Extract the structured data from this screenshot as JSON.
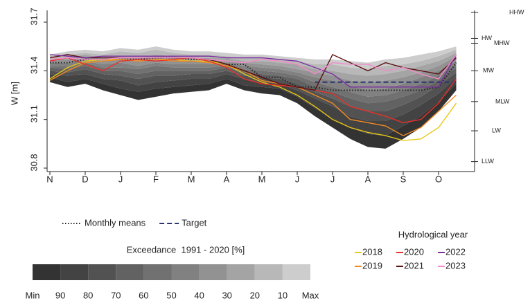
{
  "chart_data": {
    "type": "line",
    "y_label": "W [m]",
    "categories": [
      "N",
      null,
      "D",
      null,
      "J",
      null,
      "F",
      null,
      "M",
      null,
      "A",
      null,
      "M",
      null,
      "J",
      null,
      "J",
      null,
      "A",
      null,
      "S",
      null,
      "O",
      null
    ],
    "ylim": [
      30.8,
      31.7
    ],
    "yticks": [
      30.8,
      31.1,
      31.4,
      31.7
    ],
    "reference_levels": [
      {
        "label": "HHW",
        "value": 31.76
      },
      {
        "label": "HW",
        "value": 31.6
      },
      {
        "label": "MHW",
        "value": 31.57
      },
      {
        "label": "MW",
        "value": 31.4
      },
      {
        "label": "MLW",
        "value": 31.21
      },
      {
        "label": "LW",
        "value": 31.03
      },
      {
        "label": "LLW",
        "value": 30.84
      }
    ],
    "exceedance": {
      "title": "Exceedance  1991 - 2020 [%]",
      "colors": [
        "#333333",
        "#434343",
        "#525252",
        "#626262",
        "#717171",
        "#818181",
        "#929292",
        "#a4a4a4",
        "#b8b8b8",
        "#cdcdcd"
      ],
      "bounds": [
        {
          "name": "Min",
          "values": [
            31.33,
            31.3,
            31.32,
            31.28,
            31.25,
            31.22,
            31.24,
            31.26,
            31.27,
            31.28,
            31.32,
            31.28,
            31.26,
            31.25,
            31.2,
            31.12,
            31.05,
            30.98,
            30.93,
            30.92,
            30.98,
            31.05,
            31.15,
            31.28
          ]
        },
        {
          "name": "90",
          "values": [
            31.36,
            31.33,
            31.35,
            31.32,
            31.29,
            31.27,
            31.29,
            31.3,
            31.31,
            31.32,
            31.35,
            31.31,
            31.3,
            31.29,
            31.24,
            31.17,
            31.11,
            31.05,
            31.01,
            31.0,
            31.06,
            31.12,
            31.21,
            31.32
          ]
        },
        {
          "name": "80",
          "values": [
            31.38,
            31.37,
            31.38,
            31.35,
            31.34,
            31.31,
            31.33,
            31.34,
            31.35,
            31.35,
            31.38,
            31.35,
            31.33,
            31.32,
            31.28,
            31.23,
            31.18,
            31.12,
            31.09,
            31.09,
            31.13,
            31.19,
            31.26,
            31.36
          ]
        },
        {
          "name": "70",
          "values": [
            31.4,
            31.39,
            31.41,
            31.38,
            31.37,
            31.35,
            31.37,
            31.37,
            31.38,
            31.38,
            31.4,
            31.37,
            31.36,
            31.35,
            31.32,
            31.27,
            31.23,
            31.18,
            31.15,
            31.15,
            31.19,
            31.24,
            31.31,
            31.39
          ]
        },
        {
          "name": "60",
          "values": [
            31.42,
            31.41,
            31.43,
            31.4,
            31.4,
            31.38,
            31.4,
            31.4,
            31.4,
            31.4,
            31.42,
            31.39,
            31.38,
            31.37,
            31.35,
            31.3,
            31.27,
            31.23,
            31.2,
            31.21,
            31.24,
            31.28,
            31.34,
            31.42
          ]
        },
        {
          "name": "50",
          "values": [
            31.43,
            31.43,
            31.45,
            31.42,
            31.42,
            31.41,
            31.43,
            31.42,
            31.42,
            31.42,
            31.43,
            31.41,
            31.4,
            31.39,
            31.37,
            31.33,
            31.3,
            31.27,
            31.24,
            31.25,
            31.28,
            31.32,
            31.37,
            31.44
          ]
        },
        {
          "name": "40",
          "values": [
            31.45,
            31.45,
            31.46,
            31.44,
            31.45,
            31.43,
            31.45,
            31.44,
            31.44,
            31.44,
            31.45,
            31.43,
            31.42,
            31.41,
            31.39,
            31.36,
            31.34,
            31.31,
            31.28,
            31.29,
            31.32,
            31.36,
            31.4,
            31.46
          ]
        },
        {
          "name": "30",
          "values": [
            31.46,
            31.47,
            31.48,
            31.46,
            31.47,
            31.46,
            31.48,
            31.47,
            31.46,
            31.46,
            31.46,
            31.45,
            31.44,
            31.43,
            31.41,
            31.39,
            31.37,
            31.34,
            31.33,
            31.34,
            31.36,
            31.39,
            31.43,
            31.49
          ]
        },
        {
          "name": "20",
          "values": [
            31.47,
            31.48,
            31.5,
            31.48,
            31.49,
            31.48,
            31.5,
            31.49,
            31.48,
            31.48,
            31.48,
            31.46,
            31.46,
            31.45,
            31.44,
            31.41,
            31.4,
            31.38,
            31.37,
            31.38,
            31.4,
            31.43,
            31.46,
            31.51
          ]
        },
        {
          "name": "10",
          "values": [
            31.49,
            31.5,
            31.51,
            31.5,
            31.52,
            31.51,
            31.53,
            31.51,
            31.5,
            31.5,
            31.49,
            31.48,
            31.48,
            31.47,
            31.46,
            31.44,
            31.44,
            31.42,
            31.41,
            31.43,
            31.44,
            31.46,
            31.49,
            31.53
          ]
        },
        {
          "name": "Max",
          "values": [
            31.5,
            31.52,
            31.53,
            31.52,
            31.54,
            31.53,
            31.55,
            31.53,
            31.52,
            31.52,
            31.51,
            31.5,
            31.5,
            31.49,
            31.48,
            31.47,
            31.47,
            31.46,
            31.45,
            31.47,
            31.48,
            31.5,
            31.52,
            31.55
          ]
        }
      ]
    },
    "legend_title": "Hydrological year",
    "series": [
      {
        "name": "Monthly means",
        "color": "#222222",
        "style": "dotted",
        "values": [
          31.45,
          31.45,
          31.47,
          31.47,
          31.47,
          31.47,
          31.48,
          31.48,
          31.47,
          31.47,
          31.44,
          31.44,
          31.36,
          31.36,
          31.3,
          31.3,
          31.28,
          31.28,
          31.28,
          31.28,
          31.28,
          31.28,
          31.3,
          31.45
        ]
      },
      {
        "name": "Target",
        "color": "#2a3470",
        "style": "dashed",
        "values": [
          null,
          null,
          null,
          null,
          null,
          null,
          null,
          null,
          null,
          null,
          null,
          null,
          null,
          null,
          null,
          31.33,
          31.33,
          31.33,
          31.33,
          31.33,
          31.33,
          31.33,
          31.33,
          31.33
        ]
      },
      {
        "name": "2018",
        "color": "#e8c817",
        "style": "solid",
        "values": [
          31.35,
          31.42,
          31.46,
          31.47,
          31.47,
          31.46,
          31.47,
          31.47,
          31.46,
          31.46,
          31.44,
          31.38,
          31.33,
          31.3,
          31.25,
          31.18,
          31.1,
          31.05,
          31.02,
          31.0,
          30.97,
          30.98,
          31.05,
          31.2
        ]
      },
      {
        "name": "2019",
        "color": "#f08a24",
        "style": "solid",
        "values": [
          31.34,
          31.4,
          31.45,
          31.46,
          31.47,
          31.46,
          31.47,
          31.46,
          31.46,
          31.45,
          31.43,
          31.4,
          31.34,
          31.32,
          31.3,
          31.25,
          31.2,
          31.1,
          31.08,
          31.06,
          31.0,
          31.05,
          31.15,
          31.25
        ]
      },
      {
        "name": "2020",
        "color": "#e8302a",
        "style": "solid",
        "values": [
          31.46,
          31.48,
          31.44,
          31.4,
          31.46,
          31.47,
          31.46,
          31.47,
          31.48,
          31.46,
          31.42,
          31.35,
          31.32,
          31.31,
          31.3,
          31.28,
          31.26,
          31.18,
          31.15,
          31.12,
          31.08,
          31.1,
          31.2,
          31.35
        ]
      },
      {
        "name": "2021",
        "color": "#5a1010",
        "style": "solid",
        "values": [
          31.48,
          31.5,
          31.48,
          31.48,
          31.48,
          31.48,
          31.48,
          31.48,
          31.48,
          31.47,
          31.44,
          31.4,
          31.36,
          31.32,
          31.3,
          31.28,
          31.5,
          31.45,
          31.4,
          31.45,
          31.42,
          31.4,
          31.38,
          31.48
        ]
      },
      {
        "name": "2022",
        "color": "#7a2e9e",
        "style": "solid",
        "values": [
          31.5,
          31.49,
          31.48,
          31.49,
          31.49,
          31.49,
          31.49,
          31.49,
          31.49,
          31.49,
          31.48,
          31.48,
          31.48,
          31.47,
          31.46,
          31.42,
          31.38,
          31.3,
          31.3,
          31.3,
          31.3,
          31.3,
          31.3,
          31.5
        ]
      },
      {
        "name": "2023",
        "color": "#f08cc8",
        "style": "solid",
        "values": [
          31.47,
          31.48,
          31.47,
          31.47,
          31.48,
          31.48,
          31.48,
          31.48,
          31.48,
          31.47,
          31.46,
          31.45,
          31.47,
          31.46,
          31.44,
          31.38,
          31.45,
          31.44,
          31.44,
          31.4,
          31.42,
          31.38,
          31.35,
          31.5
        ]
      }
    ]
  }
}
